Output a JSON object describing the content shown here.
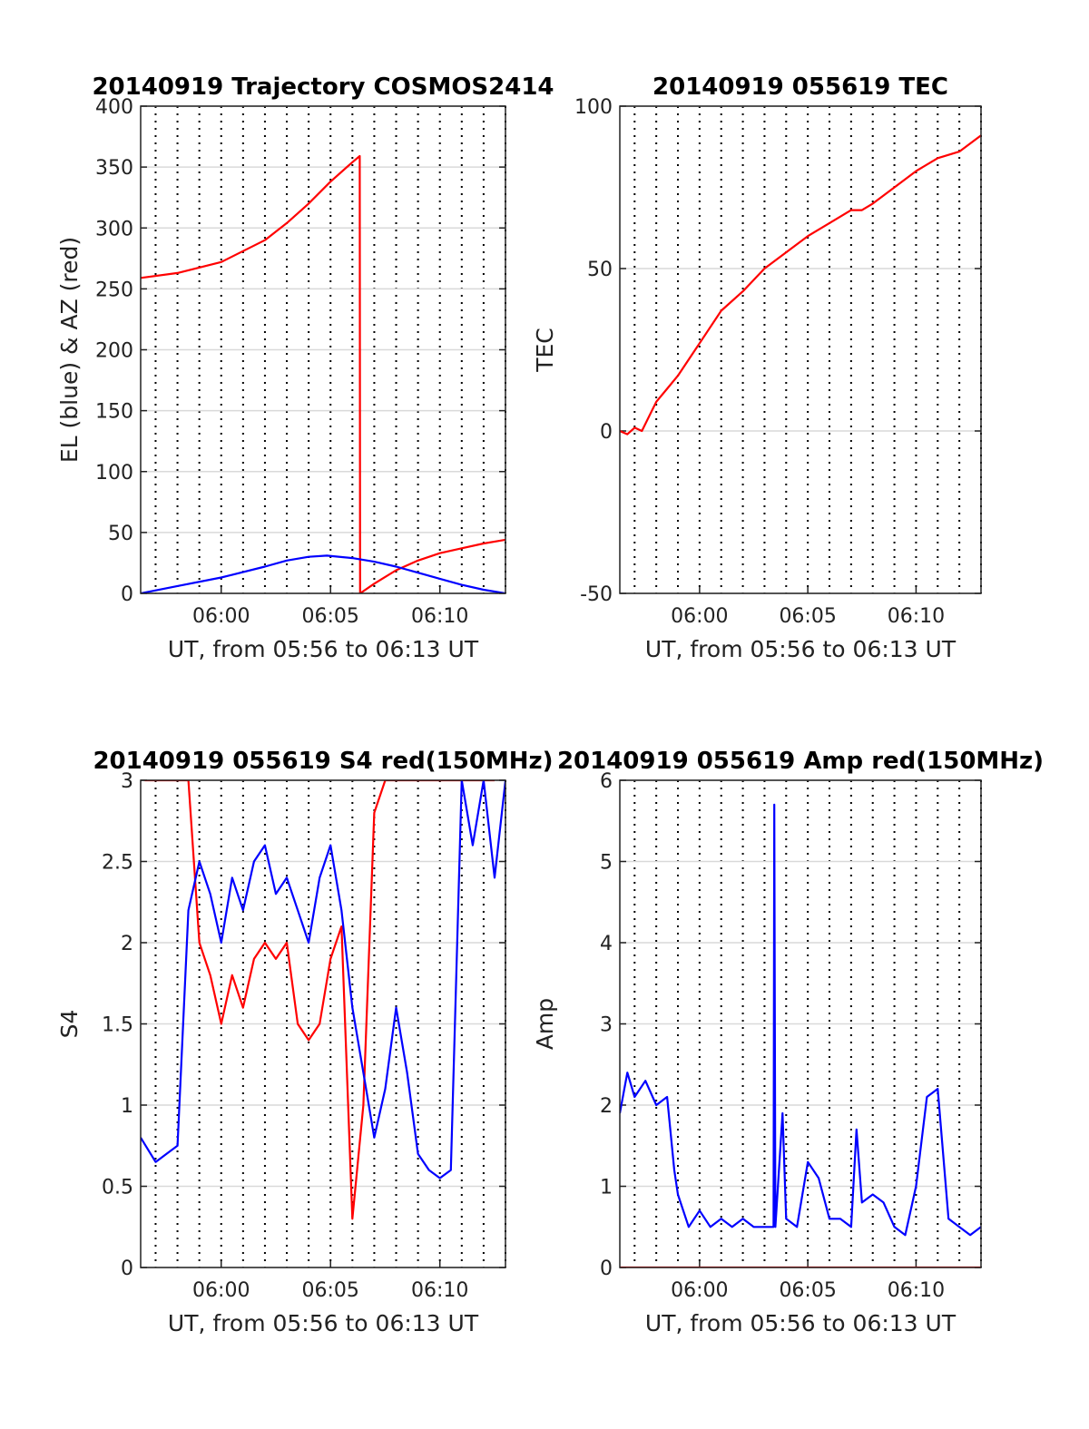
{
  "chart_data": [
    {
      "type": "line",
      "title": "20140919 Trajectory COSMOS2414",
      "xlabel": "UT, from 05:56 to 06:13 UT",
      "ylabel": "EL (blue) & AZ (red)",
      "xlim": [
        "05:56:19",
        "06:13:00"
      ],
      "ylim": [
        0,
        400
      ],
      "xticks": [
        "06:00",
        "06:05",
        "06:10"
      ],
      "yticks": [
        "0",
        "50",
        "100",
        "150",
        "200",
        "250",
        "300",
        "350",
        "400"
      ],
      "grid": "horizontal solid gridlines at y ticks; vertical dotted gridlines every minute",
      "series": [
        {
          "color": "#ff0000",
          "x": [
            "05:56:19",
            "05:58:00",
            "06:00:00",
            "06:02:00",
            "06:03:00",
            "06:04:00",
            "06:05:00",
            "06:06:00",
            "06:06:20",
            "06:06:21",
            "06:07:00",
            "06:08:00",
            "06:09:00",
            "06:10:00",
            "06:11:00",
            "06:12:00",
            "06:13:00"
          ],
          "values": [
            259,
            263,
            272,
            290,
            304,
            320,
            338,
            354,
            359,
            0,
            8,
            19,
            27,
            33,
            37,
            41,
            44
          ]
        },
        {
          "color": "#0000ff",
          "x": [
            "05:56:19",
            "05:58:00",
            "06:00:00",
            "06:02:00",
            "06:03:00",
            "06:04:00",
            "06:04:50",
            "06:06:00",
            "06:07:00",
            "06:08:00",
            "06:09:00",
            "06:10:00",
            "06:11:00",
            "06:12:00",
            "06:13:00"
          ],
          "values": [
            0,
            6,
            13,
            22,
            27,
            30,
            31,
            29,
            26,
            22,
            17,
            12,
            7,
            3,
            0
          ]
        }
      ]
    },
    {
      "type": "line",
      "title": "20140919 055619 TEC",
      "xlabel": "UT, from 05:56 to 06:13 UT",
      "ylabel": "TEC",
      "xlim": [
        "05:56:19",
        "06:13:00"
      ],
      "ylim": [
        -50,
        100
      ],
      "xticks": [
        "06:00",
        "06:05",
        "06:10"
      ],
      "yticks": [
        "-50",
        "0",
        "50",
        "100"
      ],
      "grid": "horizontal solid gridlines at y ticks; vertical dotted gridlines every minute",
      "series": [
        {
          "color": "#ff0000",
          "x": [
            "05:56:19",
            "05:56:40",
            "05:57:00",
            "05:57:20",
            "05:58:00",
            "05:58:30",
            "05:59:00",
            "06:00:00",
            "06:01:00",
            "06:02:00",
            "06:03:00",
            "06:04:00",
            "06:05:00",
            "06:06:00",
            "06:07:00",
            "06:07:30",
            "06:08:00",
            "06:09:00",
            "06:10:00",
            "06:11:00",
            "06:12:00",
            "06:13:00"
          ],
          "values": [
            0,
            -1,
            1,
            0,
            9,
            13,
            17,
            27,
            37,
            43,
            50,
            55,
            60,
            64,
            68,
            68,
            70,
            75,
            80,
            84,
            86,
            91
          ]
        }
      ]
    },
    {
      "type": "line",
      "title": "20140919 055619 S4 red(150MHz)",
      "xlabel": "UT, from 05:56 to 06:13 UT",
      "ylabel": "S4",
      "xlim": [
        "05:56:19",
        "06:13:00"
      ],
      "ylim": [
        0,
        3
      ],
      "xticks": [
        "06:00",
        "06:05",
        "06:10"
      ],
      "yticks": [
        "0",
        "0.5",
        "1",
        "1.5",
        "2",
        "2.5",
        "3"
      ],
      "grid": "horizontal solid gridlines at y ticks; vertical dotted gridlines every minute",
      "series": [
        {
          "color": "#ff0000",
          "x": [
            "05:56:30",
            "05:57:00",
            "05:57:30",
            "05:58:00",
            "05:58:30",
            "05:59:00",
            "05:59:30",
            "06:00:00",
            "06:00:30",
            "06:01:00",
            "06:01:30",
            "06:02:00",
            "06:02:30",
            "06:03:00",
            "06:03:30",
            "06:04:00",
            "06:04:30",
            "06:05:00",
            "06:05:30",
            "06:06:00",
            "06:06:30",
            "06:07:00",
            "06:07:30",
            "06:08:00",
            "06:08:30",
            "06:09:00",
            "06:09:30",
            "06:10:00",
            "06:10:30",
            "06:11:00",
            "06:11:30",
            "06:12:00",
            "06:12:30"
          ],
          "values": [
            3,
            3,
            3,
            3,
            3,
            2.0,
            1.8,
            1.5,
            1.8,
            1.6,
            1.9,
            2.0,
            1.9,
            2.0,
            1.5,
            1.4,
            1.5,
            1.9,
            2.1,
            0.3,
            1.0,
            2.8,
            3,
            3,
            3,
            3,
            3,
            3,
            3,
            3,
            3,
            3,
            3
          ]
        },
        {
          "color": "#0000ff",
          "x": [
            "05:56:19",
            "05:57:00",
            "05:57:30",
            "05:58:00",
            "05:58:30",
            "05:59:00",
            "05:59:30",
            "06:00:00",
            "06:00:30",
            "06:01:00",
            "06:01:30",
            "06:02:00",
            "06:02:30",
            "06:03:00",
            "06:03:30",
            "06:04:00",
            "06:04:30",
            "06:05:00",
            "06:05:30",
            "06:06:00",
            "06:06:30",
            "06:07:00",
            "06:07:30",
            "06:08:00",
            "06:08:30",
            "06:09:00",
            "06:09:30",
            "06:10:00",
            "06:10:30",
            "06:11:00",
            "06:11:30",
            "06:12:00",
            "06:12:30",
            "06:13:00"
          ],
          "values": [
            0.8,
            0.65,
            0.7,
            0.75,
            2.2,
            2.5,
            2.3,
            2.0,
            2.4,
            2.2,
            2.5,
            2.6,
            2.3,
            2.4,
            2.2,
            2.0,
            2.4,
            2.6,
            2.2,
            1.6,
            1.2,
            0.8,
            1.1,
            1.6,
            1.2,
            0.7,
            0.6,
            0.55,
            0.6,
            3,
            2.6,
            3,
            2.4,
            3
          ]
        }
      ]
    },
    {
      "type": "line",
      "title": "20140919 055619 Amp red(150MHz)",
      "xlabel": "UT, from 05:56 to 06:13 UT",
      "ylabel": "Amp",
      "xlim": [
        "05:56:19",
        "06:13:00"
      ],
      "ylim": [
        0,
        6
      ],
      "xticks": [
        "06:00",
        "06:05",
        "06:10"
      ],
      "yticks": [
        "0",
        "1",
        "2",
        "3",
        "4",
        "5",
        "6"
      ],
      "grid": "horizontal solid gridlines at y ticks; vertical dotted gridlines every minute",
      "series": [
        {
          "color": "#0000ff",
          "x": [
            "05:56:19",
            "05:56:40",
            "05:57:00",
            "05:57:30",
            "05:58:00",
            "05:58:30",
            "05:58:50",
            "05:59:00",
            "05:59:30",
            "06:00:00",
            "06:00:30",
            "06:01:00",
            "06:01:30",
            "06:02:00",
            "06:02:30",
            "06:03:00",
            "06:03:25",
            "06:03:27",
            "06:03:30",
            "06:03:50",
            "06:04:00",
            "06:04:30",
            "06:05:00",
            "06:05:30",
            "06:06:00",
            "06:06:30",
            "06:07:00",
            "06:07:15",
            "06:07:30",
            "06:08:00",
            "06:08:30",
            "06:09:00",
            "06:09:30",
            "06:10:00",
            "06:10:30",
            "06:11:00",
            "06:11:30",
            "06:12:00",
            "06:12:30",
            "06:13:00"
          ],
          "values": [
            1.9,
            2.4,
            2.1,
            2.3,
            2.0,
            2.1,
            1.2,
            0.9,
            0.5,
            0.7,
            0.5,
            0.6,
            0.5,
            0.6,
            0.5,
            0.5,
            0.5,
            5.7,
            0.5,
            1.9,
            0.6,
            0.5,
            1.3,
            1.1,
            0.6,
            0.6,
            0.5,
            1.7,
            0.8,
            0.9,
            0.8,
            0.5,
            0.4,
            1.0,
            2.1,
            2.2,
            0.6,
            0.5,
            0.4,
            0.5
          ]
        },
        {
          "color": "#ff0000",
          "x": [
            "05:56:19",
            "06:13:00"
          ],
          "values": [
            0,
            0
          ]
        }
      ]
    }
  ]
}
